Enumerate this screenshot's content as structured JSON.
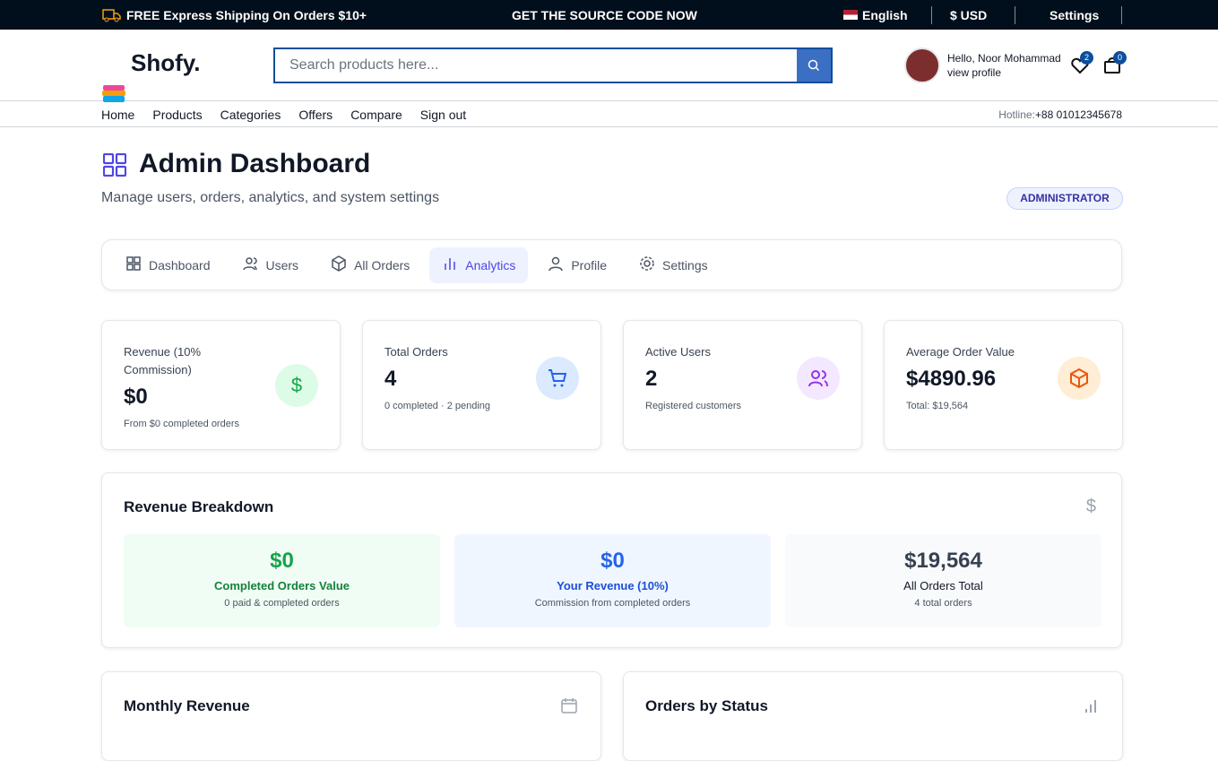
{
  "topbar": {
    "shipping": "FREE Express Shipping On Orders $10+",
    "source": "GET THE SOURCE CODE NOW",
    "language": "English",
    "currency": "$ USD",
    "settings": "Settings"
  },
  "header": {
    "logo": "Shofy.",
    "search_placeholder": "Search products here...",
    "greeting": "Hello, Noor Mohammad",
    "profile_link": "view profile",
    "wishlist_count": "2",
    "cart_count": "0"
  },
  "nav": {
    "links": [
      "Home",
      "Products",
      "Categories",
      "Offers",
      "Compare",
      "Sign out"
    ],
    "hotline_label": "Hotline:",
    "hotline": "+88 01012345678"
  },
  "page": {
    "title": "Admin Dashboard",
    "subtitle": "Manage users, orders, analytics, and system settings",
    "role": "ADMINISTRATOR"
  },
  "tabs": {
    "items": [
      "Dashboard",
      "Users",
      "All Orders",
      "Analytics",
      "Profile",
      "Settings"
    ],
    "active": 3
  },
  "stats": [
    {
      "label": "Revenue (10% Commission)",
      "value": "$0",
      "note": "From $0 completed orders"
    },
    {
      "label": "Total Orders",
      "value": "4",
      "note": "0 completed · 2 pending"
    },
    {
      "label": "Active Users",
      "value": "2",
      "note": "Registered customers"
    },
    {
      "label": "Average Order Value",
      "value": "$4890.96",
      "note": "Total: $19,564"
    }
  ],
  "revenue_breakdown": {
    "title": "Revenue Breakdown",
    "items": [
      {
        "value": "$0",
        "label": "Completed Orders Value",
        "note": "0 paid & completed orders"
      },
      {
        "value": "$0",
        "label": "Your Revenue (10%)",
        "note": "Commission from completed orders"
      },
      {
        "value": "$19,564",
        "label": "All Orders Total",
        "note": "4 total orders"
      }
    ]
  },
  "panels": [
    {
      "title": "Monthly Revenue"
    },
    {
      "title": "Orders by Status"
    }
  ]
}
